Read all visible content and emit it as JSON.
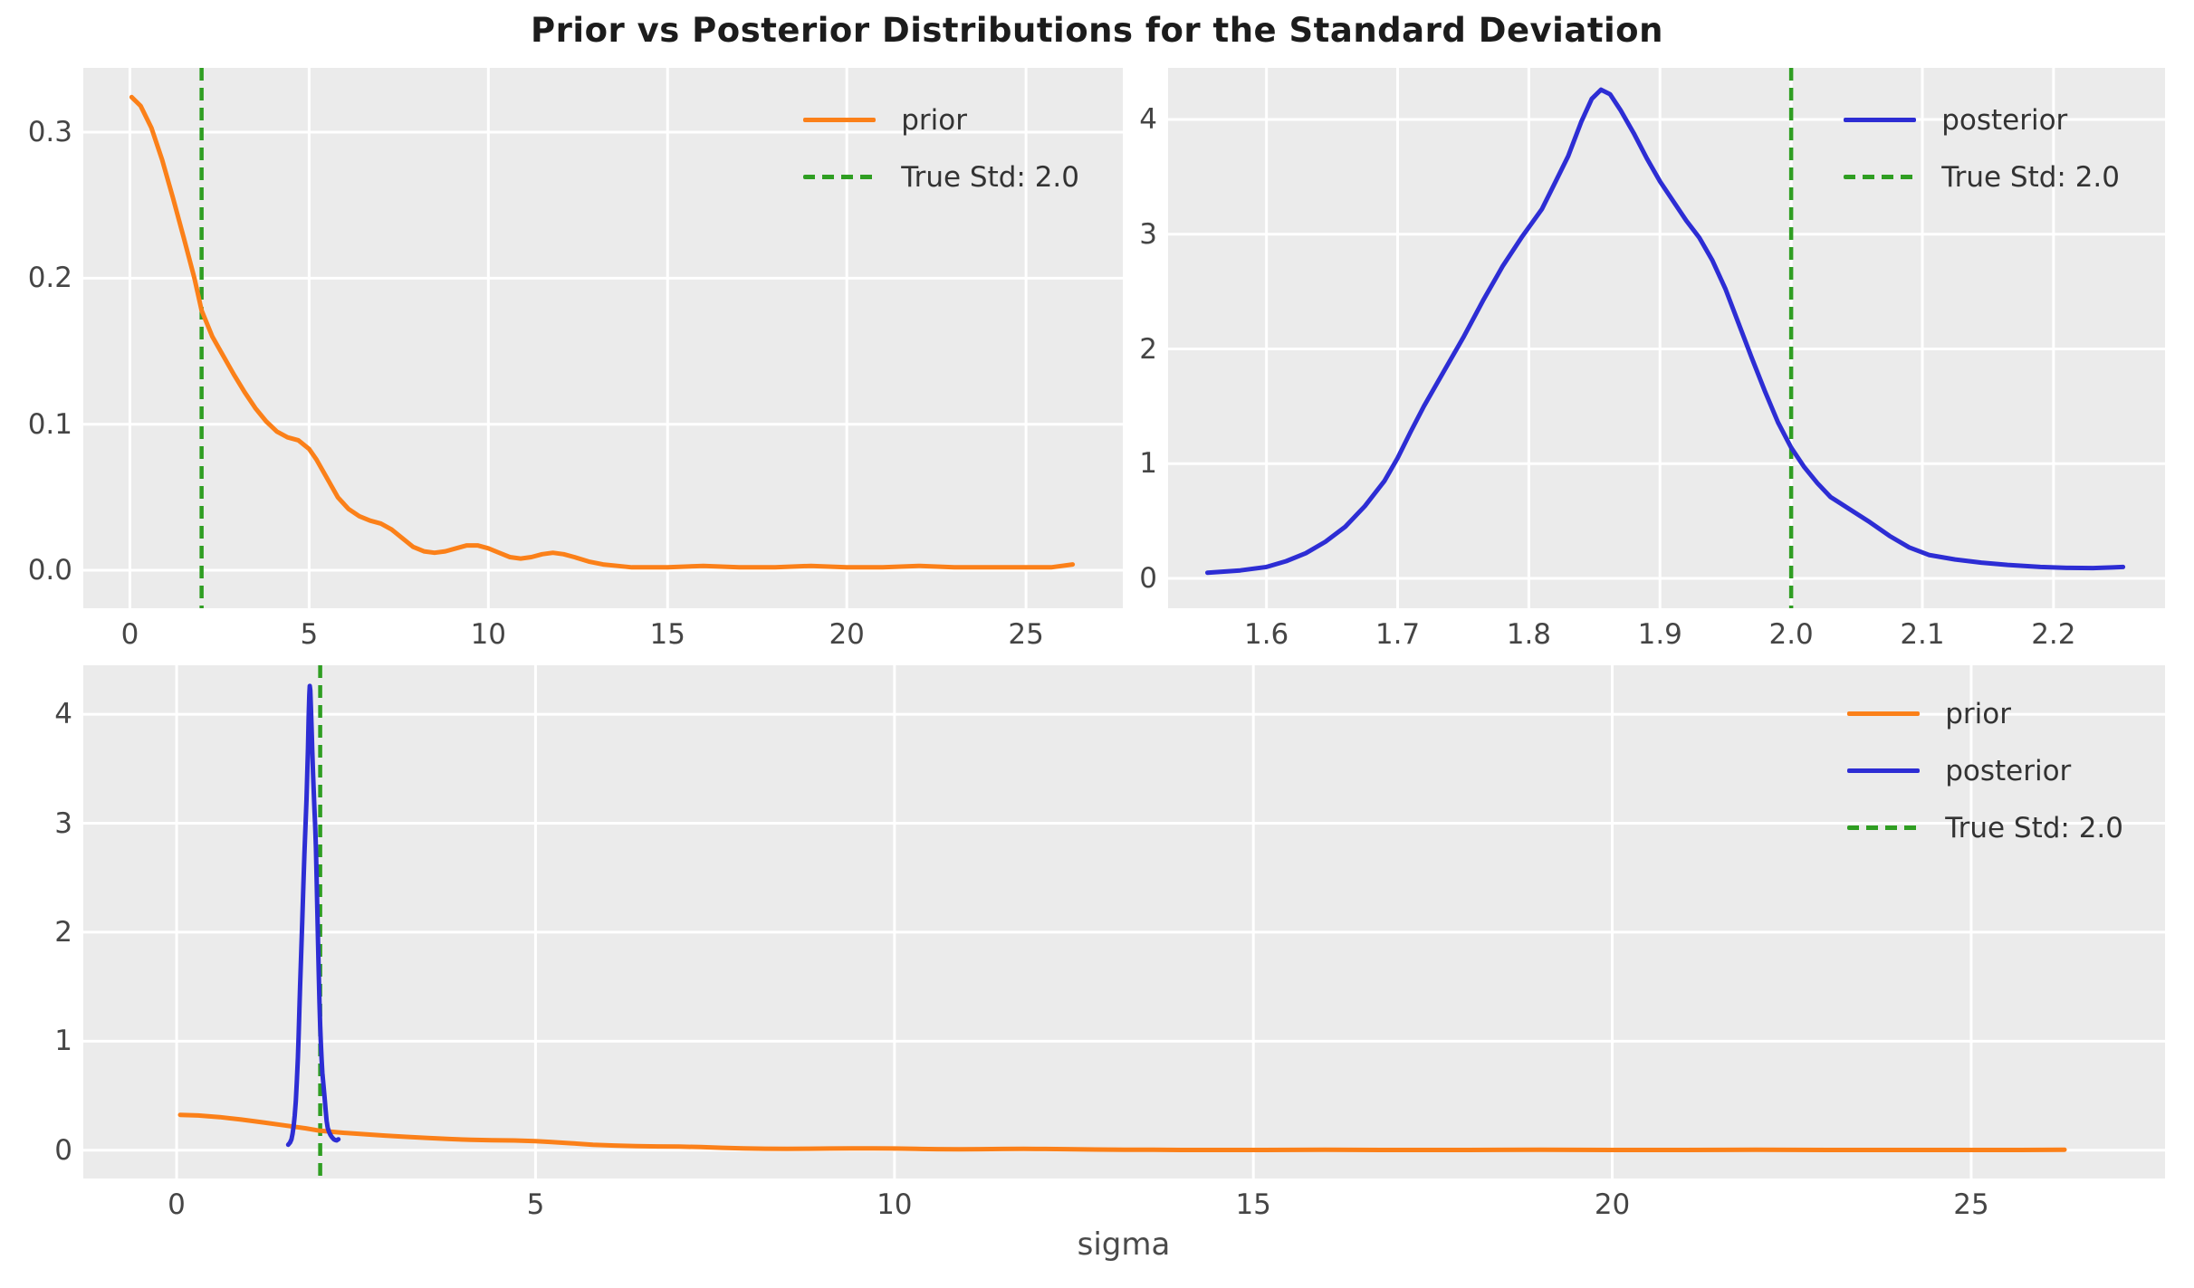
{
  "chart_data": {
    "type": "line",
    "title": "Prior vs Posterior Distributions for the Standard Deviation",
    "xlabel": "sigma",
    "grid": true,
    "legend_frame": false,
    "colors": {
      "figure_background": "#ffffff",
      "axes_background": "#ebebeb",
      "gridline": "#ffffff",
      "title_text": "#1c1c1c",
      "tick_text": "#454545",
      "axis_label_text": "#4a4a4a",
      "legend_text": "#333333"
    },
    "series_data": {
      "prior": {
        "label": "prior",
        "color": "#fb8019",
        "points": [
          [
            0.05,
            0.324
          ],
          [
            0.3,
            0.318
          ],
          [
            0.6,
            0.303
          ],
          [
            0.9,
            0.281
          ],
          [
            1.2,
            0.255
          ],
          [
            1.5,
            0.228
          ],
          [
            1.8,
            0.2
          ],
          [
            2.0,
            0.178
          ],
          [
            2.3,
            0.16
          ],
          [
            2.6,
            0.147
          ],
          [
            2.9,
            0.134
          ],
          [
            3.2,
            0.122
          ],
          [
            3.5,
            0.111
          ],
          [
            3.8,
            0.102
          ],
          [
            4.1,
            0.095
          ],
          [
            4.4,
            0.091
          ],
          [
            4.7,
            0.089
          ],
          [
            5.0,
            0.083
          ],
          [
            5.2,
            0.076
          ],
          [
            5.5,
            0.063
          ],
          [
            5.8,
            0.05
          ],
          [
            6.1,
            0.042
          ],
          [
            6.4,
            0.037
          ],
          [
            6.7,
            0.034
          ],
          [
            7.0,
            0.032
          ],
          [
            7.3,
            0.028
          ],
          [
            7.6,
            0.022
          ],
          [
            7.9,
            0.016
          ],
          [
            8.2,
            0.013
          ],
          [
            8.5,
            0.012
          ],
          [
            8.8,
            0.013
          ],
          [
            9.1,
            0.015
          ],
          [
            9.4,
            0.017
          ],
          [
            9.7,
            0.017
          ],
          [
            10.0,
            0.015
          ],
          [
            10.3,
            0.012
          ],
          [
            10.6,
            0.009
          ],
          [
            10.9,
            0.008
          ],
          [
            11.2,
            0.009
          ],
          [
            11.5,
            0.011
          ],
          [
            11.8,
            0.012
          ],
          [
            12.1,
            0.011
          ],
          [
            12.4,
            0.009
          ],
          [
            12.8,
            0.006
          ],
          [
            13.2,
            0.004
          ],
          [
            13.6,
            0.003
          ],
          [
            14.0,
            0.002
          ],
          [
            15.0,
            0.002
          ],
          [
            16.0,
            0.003
          ],
          [
            17.0,
            0.002
          ],
          [
            18.0,
            0.002
          ],
          [
            19.0,
            0.003
          ],
          [
            20.0,
            0.002
          ],
          [
            21.0,
            0.002
          ],
          [
            22.0,
            0.003
          ],
          [
            23.0,
            0.002
          ],
          [
            24.0,
            0.002
          ],
          [
            25.0,
            0.002
          ],
          [
            25.7,
            0.002
          ],
          [
            26.3,
            0.004
          ]
        ]
      },
      "posterior": {
        "label": "posterior",
        "color": "#2d2dd4",
        "points": [
          [
            1.555,
            0.05
          ],
          [
            1.58,
            0.07
          ],
          [
            1.6,
            0.1
          ],
          [
            1.615,
            0.15
          ],
          [
            1.63,
            0.22
          ],
          [
            1.645,
            0.32
          ],
          [
            1.66,
            0.45
          ],
          [
            1.675,
            0.63
          ],
          [
            1.69,
            0.85
          ],
          [
            1.7,
            1.05
          ],
          [
            1.71,
            1.28
          ],
          [
            1.72,
            1.5
          ],
          [
            1.735,
            1.8
          ],
          [
            1.75,
            2.1
          ],
          [
            1.765,
            2.42
          ],
          [
            1.78,
            2.72
          ],
          [
            1.795,
            2.98
          ],
          [
            1.81,
            3.22
          ],
          [
            1.82,
            3.45
          ],
          [
            1.83,
            3.68
          ],
          [
            1.84,
            3.98
          ],
          [
            1.848,
            4.18
          ],
          [
            1.855,
            4.26
          ],
          [
            1.862,
            4.22
          ],
          [
            1.87,
            4.08
          ],
          [
            1.88,
            3.88
          ],
          [
            1.89,
            3.66
          ],
          [
            1.9,
            3.46
          ],
          [
            1.91,
            3.29
          ],
          [
            1.92,
            3.12
          ],
          [
            1.93,
            2.97
          ],
          [
            1.94,
            2.77
          ],
          [
            1.95,
            2.52
          ],
          [
            1.96,
            2.22
          ],
          [
            1.97,
            1.92
          ],
          [
            1.98,
            1.63
          ],
          [
            1.99,
            1.36
          ],
          [
            2.0,
            1.14
          ],
          [
            2.01,
            0.97
          ],
          [
            2.02,
            0.83
          ],
          [
            2.03,
            0.71
          ],
          [
            2.045,
            0.6
          ],
          [
            2.06,
            0.49
          ],
          [
            2.075,
            0.37
          ],
          [
            2.09,
            0.27
          ],
          [
            2.105,
            0.205
          ],
          [
            2.125,
            0.165
          ],
          [
            2.145,
            0.138
          ],
          [
            2.165,
            0.118
          ],
          [
            2.19,
            0.1
          ],
          [
            2.21,
            0.092
          ],
          [
            2.23,
            0.09
          ],
          [
            2.245,
            0.096
          ],
          [
            2.253,
            0.1
          ]
        ]
      }
    },
    "true_std": {
      "label": "True Std: 2.0",
      "value": 2.0,
      "color": "#2f9e22",
      "linestyle": "dashed"
    },
    "subplots": [
      {
        "name": "prior-distribution",
        "series": [
          "prior"
        ],
        "vline": 2.0,
        "xlim": [
          -1.3,
          27.7
        ],
        "ylim": [
          -0.026,
          0.344
        ],
        "xticks": [
          0,
          5,
          10,
          15,
          20,
          25
        ],
        "xtick_labels": [
          "0",
          "5",
          "10",
          "15",
          "20",
          "25"
        ],
        "yticks": [
          0.0,
          0.1,
          0.2,
          0.3
        ],
        "ytick_labels": [
          "0.0",
          "0.1",
          "0.2",
          "0.3"
        ],
        "legend": [
          "prior",
          "true_std"
        ],
        "legend_position": "upper right"
      },
      {
        "name": "posterior-distribution",
        "series": [
          "posterior"
        ],
        "vline": 2.0,
        "xlim": [
          1.525,
          2.285
        ],
        "ylim": [
          -0.26,
          4.45
        ],
        "xticks": [
          1.6,
          1.7,
          1.8,
          1.9,
          2.0,
          2.1,
          2.2
        ],
        "xtick_labels": [
          "1.6",
          "1.7",
          "1.8",
          "1.9",
          "2.0",
          "2.1",
          "2.2"
        ],
        "yticks": [
          0,
          1,
          2,
          3,
          4
        ],
        "ytick_labels": [
          "0",
          "1",
          "2",
          "3",
          "4"
        ],
        "legend": [
          "posterior",
          "true_std"
        ],
        "legend_position": "upper right"
      },
      {
        "name": "combined-prior-posterior",
        "series": [
          "prior",
          "posterior"
        ],
        "vline": 2.0,
        "xlim": [
          -1.3,
          27.7
        ],
        "ylim": [
          -0.26,
          4.45
        ],
        "xticks": [
          0,
          5,
          10,
          15,
          20,
          25
        ],
        "xtick_labels": [
          "0",
          "5",
          "10",
          "15",
          "20",
          "25"
        ],
        "yticks": [
          0,
          1,
          2,
          3,
          4
        ],
        "ytick_labels": [
          "0",
          "1",
          "2",
          "3",
          "4"
        ],
        "legend": [
          "prior",
          "posterior",
          "true_std"
        ],
        "legend_position": "upper right"
      }
    ]
  }
}
